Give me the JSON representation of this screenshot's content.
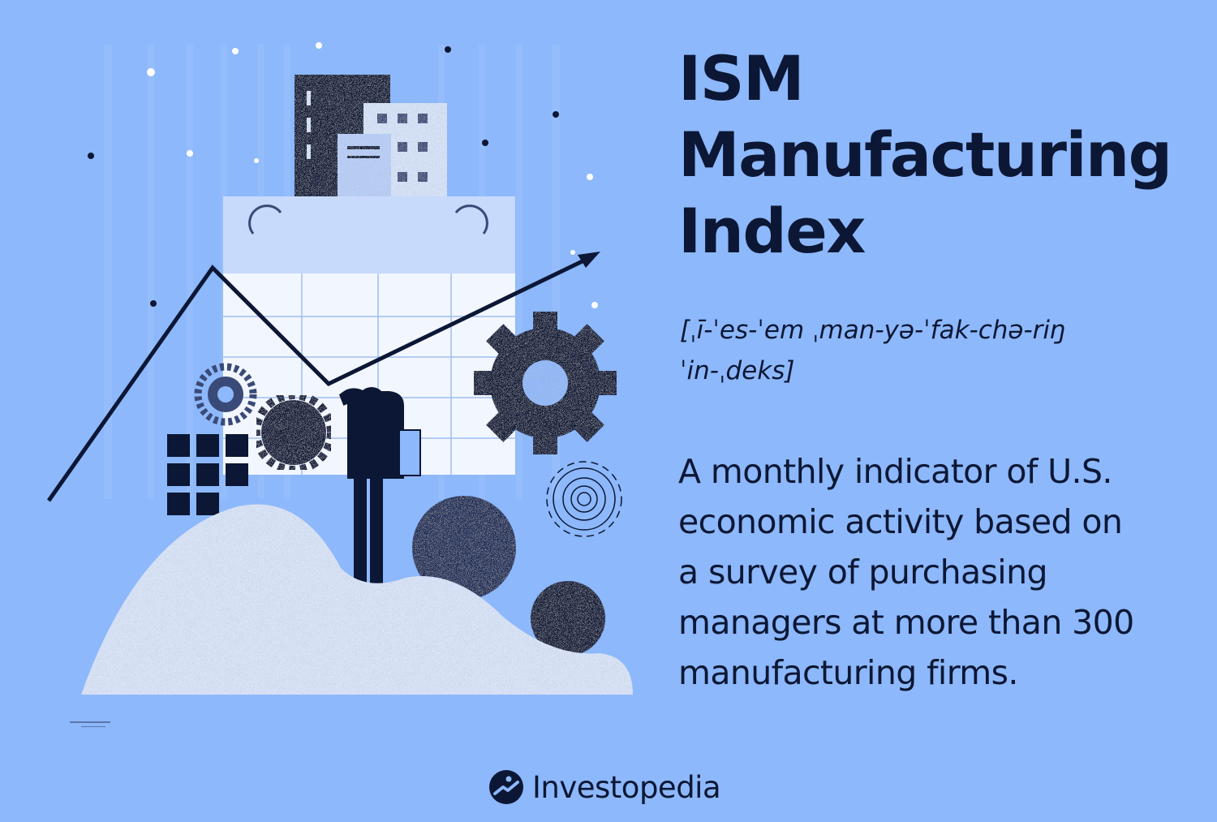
{
  "title_lines": [
    "ISM",
    "Manufacturing",
    "Index"
  ],
  "pronunciation_lines": [
    "[ˌī-ˈes-ˈem ˌman-yə-ˈfak-chə-riŋ",
    "ˈin-ˌdeks]"
  ],
  "definition_lines": [
    "A monthly indicator of U.S.",
    "economic activity based on",
    "a survey of purchasing",
    "managers at more than 300",
    "manufacturing firms."
  ],
  "brand": {
    "name": "Investopedia",
    "logo_icon": "investopedia-logo-icon"
  },
  "colors": {
    "background": "#8db8fb",
    "navy": "#0b1734",
    "pale_blue": "#d6e4fb",
    "mid_blue": "#b7cffa"
  }
}
